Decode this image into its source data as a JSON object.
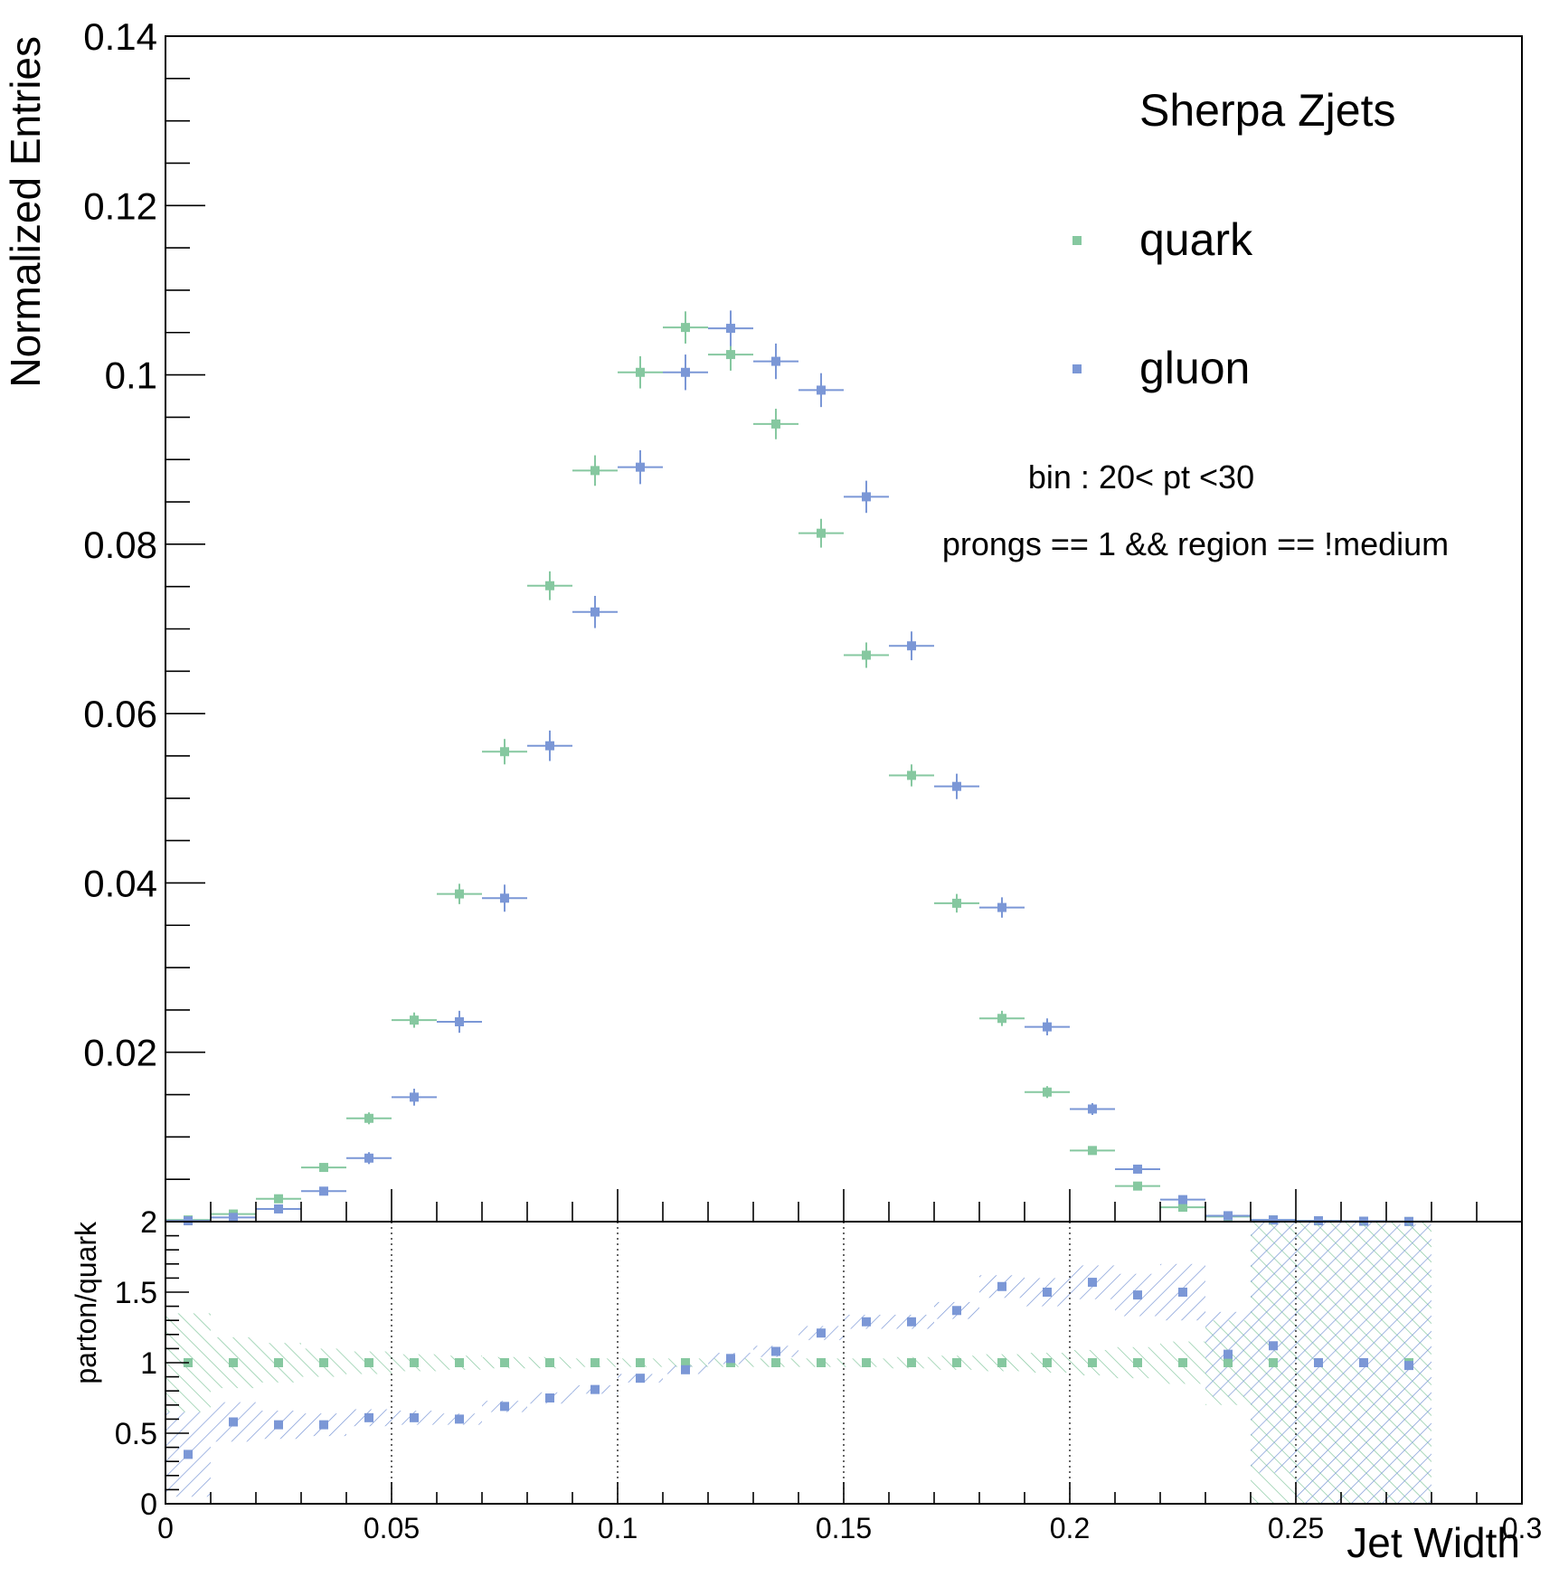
{
  "colors": {
    "quark": "#86c8a0",
    "gluon": "#7b97d6",
    "axis": "#000000",
    "background": "#ffffff"
  },
  "chart_data": [
    {
      "type": "scatter",
      "title": "",
      "xlabel": "",
      "ylabel": "Normalized Entries",
      "xlim": [
        0,
        0.3
      ],
      "ylim": [
        0,
        0.14
      ],
      "yticks": [
        "0.14",
        "0.12",
        "0.1",
        "0.08",
        "0.06",
        "0.04",
        "0.02"
      ],
      "annotations": {
        "sample": "Sherpa Zjets",
        "bin": "bin : 20< pt <30",
        "selection": "prongs == 1 && region == !medium"
      },
      "legend": {
        "placement": "top-right",
        "entries": [
          "quark",
          "gluon"
        ]
      },
      "bin_width": 0.01,
      "x": [
        0.005,
        0.015,
        0.025,
        0.035,
        0.045,
        0.055,
        0.065,
        0.075,
        0.085,
        0.095,
        0.105,
        0.115,
        0.125,
        0.135,
        0.145,
        0.155,
        0.165,
        0.175,
        0.185,
        0.195,
        0.205,
        0.215,
        0.225,
        0.235,
        0.245,
        0.255,
        0.265,
        0.275
      ],
      "series": [
        {
          "name": "quark",
          "values": [
            0.0002,
            0.0009,
            0.0027,
            0.0064,
            0.0122,
            0.0238,
            0.0387,
            0.0555,
            0.0751,
            0.0887,
            0.1003,
            0.1056,
            0.1024,
            0.0942,
            0.0813,
            0.0669,
            0.0527,
            0.0376,
            0.024,
            0.0153,
            0.0084,
            0.0042,
            0.0017,
            0.0006,
            0.0002,
            0.0001,
            5e-05,
            2e-05
          ],
          "errors": [
            0.0001,
            0.0002,
            0.0003,
            0.0005,
            0.0007,
            0.0009,
            0.0012,
            0.0015,
            0.0017,
            0.0018,
            0.0019,
            0.0019,
            0.0019,
            0.0018,
            0.0017,
            0.0015,
            0.0013,
            0.0011,
            0.0009,
            0.0007,
            0.0005,
            0.0004,
            0.0002,
            0.0001,
            0.0001,
            5e-05,
            3e-05,
            2e-05
          ]
        },
        {
          "name": "gluon",
          "values": [
            0.0001,
            0.0005,
            0.0015,
            0.0036,
            0.0075,
            0.0147,
            0.0236,
            0.0382,
            0.0562,
            0.072,
            0.0891,
            0.1003,
            0.1055,
            0.1016,
            0.0982,
            0.0856,
            0.068,
            0.0514,
            0.0371,
            0.023,
            0.0133,
            0.0062,
            0.0026,
            0.0007,
            0.0002,
            0.0001,
            5e-05,
            2e-05
          ],
          "errors": [
            0.0001,
            0.0002,
            0.0003,
            0.0005,
            0.0007,
            0.001,
            0.0013,
            0.0016,
            0.0018,
            0.0019,
            0.002,
            0.0021,
            0.0021,
            0.0021,
            0.002,
            0.0019,
            0.0017,
            0.0015,
            0.0012,
            0.001,
            0.0007,
            0.0005,
            0.0003,
            0.0002,
            0.0001,
            5e-05,
            3e-05,
            2e-05
          ]
        }
      ]
    },
    {
      "type": "scatter",
      "title": "",
      "xlabel": "Jet Width",
      "ylabel": "parton/quark",
      "xlim": [
        0,
        0.3
      ],
      "ylim": [
        0,
        2
      ],
      "xticks": [
        "0",
        "0.05",
        "0.1",
        "0.15",
        "0.2",
        "0.25",
        "0.3"
      ],
      "yticks": [
        "2",
        "1.5",
        "1",
        "0.5",
        "0"
      ],
      "grid": "vertical dotted lines at major x ticks",
      "bin_width": 0.01,
      "x": [
        0.005,
        0.015,
        0.025,
        0.035,
        0.045,
        0.055,
        0.065,
        0.075,
        0.085,
        0.095,
        0.105,
        0.115,
        0.125,
        0.135,
        0.145,
        0.155,
        0.165,
        0.175,
        0.185,
        0.195,
        0.205,
        0.215,
        0.225,
        0.235,
        0.245,
        0.255,
        0.265,
        0.275
      ],
      "series": [
        {
          "name": "quark",
          "values": [
            1,
            1,
            1,
            1,
            1,
            1,
            1,
            1,
            1,
            1,
            1,
            1,
            1,
            1,
            1,
            1,
            1,
            1,
            1,
            1,
            1,
            1,
            1,
            1,
            1,
            1,
            1,
            1
          ],
          "band": [
            0.35,
            0.18,
            0.14,
            0.1,
            0.08,
            0.06,
            0.05,
            0.04,
            0.04,
            0.03,
            0.03,
            0.03,
            0.03,
            0.03,
            0.03,
            0.03,
            0.04,
            0.05,
            0.06,
            0.07,
            0.09,
            0.11,
            0.15,
            0.3,
            1.0,
            1.0,
            1.0,
            1.0
          ]
        },
        {
          "name": "gluon",
          "values": [
            0.35,
            0.58,
            0.56,
            0.56,
            0.61,
            0.61,
            0.6,
            0.69,
            0.75,
            0.81,
            0.89,
            0.95,
            1.03,
            1.08,
            1.21,
            1.29,
            1.29,
            1.37,
            1.54,
            1.5,
            1.57,
            1.48,
            1.5,
            1.06,
            1.12,
            1.0,
            1.0,
            0.98
          ],
          "band": [
            0.3,
            0.14,
            0.1,
            0.08,
            0.06,
            0.05,
            0.04,
            0.04,
            0.04,
            0.03,
            0.03,
            0.03,
            0.04,
            0.04,
            0.05,
            0.05,
            0.05,
            0.06,
            0.08,
            0.1,
            0.12,
            0.15,
            0.2,
            0.3,
            0.9,
            1.0,
            1.0,
            1.0
          ]
        }
      ]
    }
  ]
}
